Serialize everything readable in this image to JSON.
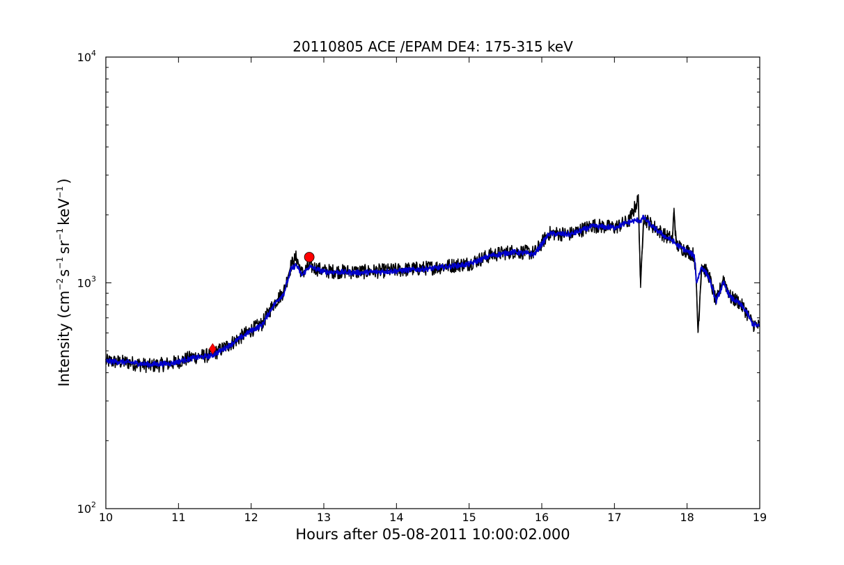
{
  "chart_data": {
    "type": "line",
    "title": "20110805 ACE /EPAM DE4: 175-315 keV",
    "xlabel": "Hours after 05-08-2011 10:00:02.000",
    "ylabel": {
      "prefix": "Intensity (cm",
      "exp1": "−2",
      "s": "s",
      "exp2": "−1",
      "sr": "sr",
      "exp3": "−1",
      "kev": "keV",
      "exp4": "−1",
      "suffix": ")"
    },
    "xlim": [
      10,
      19
    ],
    "ylim": [
      100,
      10000
    ],
    "yscale": "log",
    "grid": false,
    "x_ticks": [
      "10",
      "11",
      "12",
      "13",
      "14",
      "15",
      "16",
      "17",
      "18",
      "19"
    ],
    "y_ticks": [
      {
        "base": "10",
        "exp": "2",
        "value": 100
      },
      {
        "base": "10",
        "exp": "3",
        "value": 1000
      },
      {
        "base": "10",
        "exp": "4",
        "value": 10000
      }
    ],
    "series": [
      {
        "color": "#000000",
        "noise": "high",
        "x": [
          10.0,
          10.3,
          10.6,
          10.9,
          11.2,
          11.45,
          11.6,
          11.8,
          12.0,
          12.15,
          12.3,
          12.45,
          12.55,
          12.62,
          12.7,
          12.8,
          13.0,
          13.5,
          14.0,
          14.5,
          15.0,
          15.3,
          15.6,
          15.9,
          16.1,
          16.4,
          16.7,
          17.0,
          17.2,
          17.33,
          17.36,
          17.4,
          17.5,
          17.7,
          17.8,
          17.82,
          17.85,
          18.0,
          18.1,
          18.13,
          18.15,
          18.2,
          18.3,
          18.4,
          18.5,
          18.6,
          18.7,
          18.8,
          18.9,
          19.0
        ],
        "y": [
          450,
          445,
          430,
          440,
          470,
          480,
          510,
          560,
          620,
          660,
          800,
          920,
          1200,
          1300,
          1100,
          1190,
          1130,
          1120,
          1140,
          1170,
          1220,
          1330,
          1380,
          1360,
          1660,
          1650,
          1800,
          1760,
          1880,
          2350,
          950,
          1950,
          1820,
          1620,
          1560,
          2150,
          1470,
          1390,
          1330,
          950,
          600,
          1200,
          1080,
          820,
          1050,
          860,
          830,
          760,
          660,
          640
        ]
      },
      {
        "color": "#0000cc",
        "noise": "low",
        "x": [
          10.0,
          10.3,
          10.6,
          10.9,
          11.2,
          11.45,
          11.6,
          11.8,
          12.0,
          12.15,
          12.3,
          12.45,
          12.55,
          12.62,
          12.7,
          12.8,
          13.0,
          13.5,
          14.0,
          14.5,
          15.0,
          15.3,
          15.6,
          15.9,
          16.1,
          16.4,
          16.7,
          17.0,
          17.2,
          17.33,
          17.36,
          17.4,
          17.5,
          17.7,
          17.8,
          17.85,
          18.0,
          18.1,
          18.13,
          18.2,
          18.3,
          18.4,
          18.5,
          18.6,
          18.7,
          18.8,
          18.9,
          19.0
        ],
        "y": [
          450,
          445,
          435,
          440,
          465,
          475,
          505,
          555,
          615,
          650,
          790,
          900,
          1150,
          1200,
          1080,
          1180,
          1120,
          1110,
          1130,
          1160,
          1210,
          1320,
          1370,
          1340,
          1650,
          1640,
          1780,
          1760,
          1860,
          1900,
          1880,
          1950,
          1800,
          1600,
          1540,
          1480,
          1380,
          1320,
          1000,
          1180,
          1060,
          830,
          1000,
          860,
          820,
          760,
          660,
          640
        ]
      }
    ],
    "markers": [
      {
        "shape": "diamond",
        "x": 11.47,
        "y": 510,
        "color": "#ff0000"
      },
      {
        "shape": "circle",
        "x": 12.8,
        "y": 1300,
        "color": "#ff0000"
      }
    ]
  }
}
